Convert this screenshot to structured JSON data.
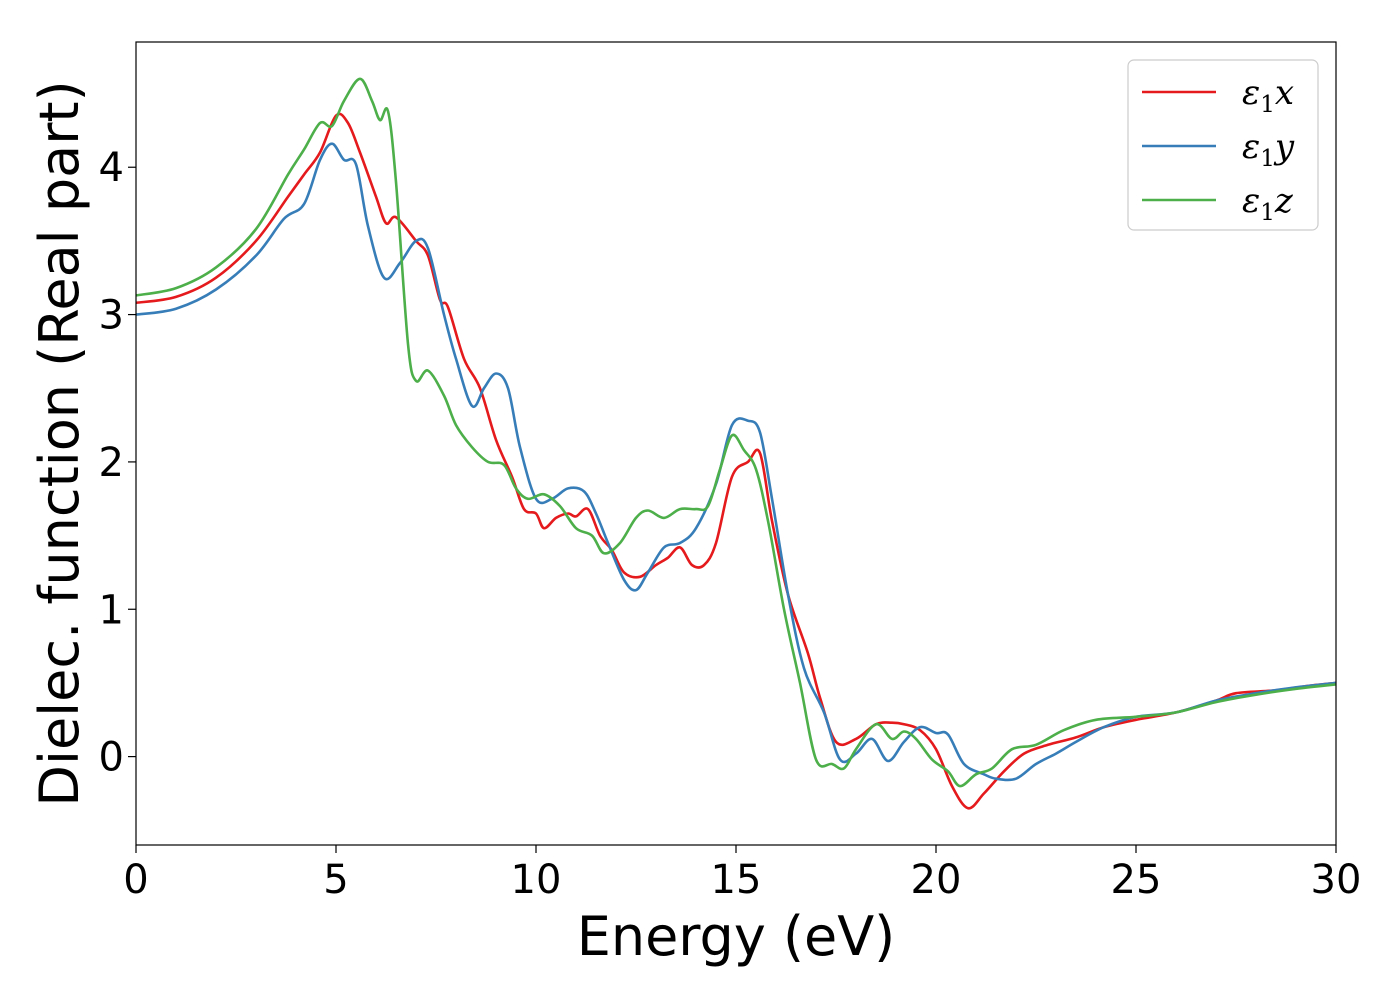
{
  "chart_data": {
    "type": "line",
    "title": "",
    "xlabel": "Energy (eV)",
    "ylabel": "Dielec. function (Real part)",
    "xlim": [
      0,
      30
    ],
    "ylim": [
      -0.6,
      4.85
    ],
    "xticks": [
      0,
      5,
      10,
      15,
      20,
      25,
      30
    ],
    "yticks": [
      0,
      1,
      2,
      3,
      4
    ],
    "grid": false,
    "legend_position": "top-right",
    "series": [
      {
        "name": "ε1x",
        "label_base": "ε",
        "label_sub": "1",
        "label_suffix": "x",
        "color": "#e41a1c",
        "points": [
          [
            0,
            3.08
          ],
          [
            1,
            3.12
          ],
          [
            2,
            3.25
          ],
          [
            3,
            3.5
          ],
          [
            3.8,
            3.8
          ],
          [
            4.2,
            3.95
          ],
          [
            4.6,
            4.1
          ],
          [
            5.0,
            4.35
          ],
          [
            5.3,
            4.3
          ],
          [
            5.6,
            4.1
          ],
          [
            6.0,
            3.8
          ],
          [
            6.25,
            3.62
          ],
          [
            6.5,
            3.66
          ],
          [
            7.0,
            3.5
          ],
          [
            7.3,
            3.4
          ],
          [
            7.6,
            3.1
          ],
          [
            7.8,
            3.05
          ],
          [
            8.2,
            2.7
          ],
          [
            8.6,
            2.5
          ],
          [
            9.0,
            2.15
          ],
          [
            9.4,
            1.9
          ],
          [
            9.7,
            1.68
          ],
          [
            10.0,
            1.65
          ],
          [
            10.2,
            1.55
          ],
          [
            10.5,
            1.62
          ],
          [
            10.8,
            1.65
          ],
          [
            11.0,
            1.63
          ],
          [
            11.3,
            1.68
          ],
          [
            11.6,
            1.5
          ],
          [
            11.9,
            1.4
          ],
          [
            12.2,
            1.25
          ],
          [
            12.6,
            1.22
          ],
          [
            13.0,
            1.3
          ],
          [
            13.3,
            1.35
          ],
          [
            13.6,
            1.42
          ],
          [
            13.9,
            1.3
          ],
          [
            14.2,
            1.3
          ],
          [
            14.5,
            1.45
          ],
          [
            14.9,
            1.9
          ],
          [
            15.3,
            2.0
          ],
          [
            15.6,
            2.06
          ],
          [
            15.9,
            1.6
          ],
          [
            16.3,
            1.1
          ],
          [
            16.8,
            0.7
          ],
          [
            17.1,
            0.4
          ],
          [
            17.5,
            0.1
          ],
          [
            18.0,
            0.12
          ],
          [
            18.5,
            0.22
          ],
          [
            18.9,
            0.23
          ],
          [
            19.2,
            0.22
          ],
          [
            19.6,
            0.18
          ],
          [
            20.0,
            0.05
          ],
          [
            20.4,
            -0.2
          ],
          [
            20.8,
            -0.35
          ],
          [
            21.2,
            -0.25
          ],
          [
            21.7,
            -0.1
          ],
          [
            22.2,
            0.02
          ],
          [
            22.8,
            0.08
          ],
          [
            23.5,
            0.13
          ],
          [
            24.2,
            0.2
          ],
          [
            25.0,
            0.25
          ],
          [
            26.0,
            0.3
          ],
          [
            27.0,
            0.38
          ],
          [
            27.5,
            0.43
          ],
          [
            28.5,
            0.45
          ],
          [
            29.3,
            0.48
          ],
          [
            30,
            0.5
          ]
        ]
      },
      {
        "name": "ε1y",
        "label_base": "ε",
        "label_sub": "1",
        "label_suffix": "y",
        "color": "#377eb8",
        "points": [
          [
            0,
            3.0
          ],
          [
            1,
            3.04
          ],
          [
            2,
            3.17
          ],
          [
            3,
            3.4
          ],
          [
            3.7,
            3.65
          ],
          [
            4.2,
            3.75
          ],
          [
            4.6,
            4.05
          ],
          [
            4.9,
            4.16
          ],
          [
            5.2,
            4.05
          ],
          [
            5.5,
            4.02
          ],
          [
            5.8,
            3.6
          ],
          [
            6.2,
            3.25
          ],
          [
            6.6,
            3.35
          ],
          [
            7.0,
            3.5
          ],
          [
            7.3,
            3.45
          ],
          [
            7.7,
            3.0
          ],
          [
            8.0,
            2.7
          ],
          [
            8.4,
            2.38
          ],
          [
            8.7,
            2.5
          ],
          [
            9.0,
            2.6
          ],
          [
            9.3,
            2.5
          ],
          [
            9.6,
            2.1
          ],
          [
            10.0,
            1.75
          ],
          [
            10.4,
            1.75
          ],
          [
            10.8,
            1.82
          ],
          [
            11.2,
            1.8
          ],
          [
            11.5,
            1.65
          ],
          [
            11.8,
            1.45
          ],
          [
            12.2,
            1.2
          ],
          [
            12.5,
            1.13
          ],
          [
            12.8,
            1.25
          ],
          [
            13.2,
            1.42
          ],
          [
            13.6,
            1.45
          ],
          [
            14.0,
            1.55
          ],
          [
            14.5,
            1.85
          ],
          [
            14.9,
            2.25
          ],
          [
            15.3,
            2.28
          ],
          [
            15.6,
            2.2
          ],
          [
            15.9,
            1.75
          ],
          [
            16.3,
            1.1
          ],
          [
            16.7,
            0.6
          ],
          [
            17.2,
            0.3
          ],
          [
            17.6,
            -0.02
          ],
          [
            18.0,
            0.02
          ],
          [
            18.4,
            0.12
          ],
          [
            18.8,
            -0.03
          ],
          [
            19.2,
            0.1
          ],
          [
            19.6,
            0.2
          ],
          [
            20.0,
            0.16
          ],
          [
            20.3,
            0.15
          ],
          [
            20.7,
            -0.05
          ],
          [
            21.2,
            -0.12
          ],
          [
            21.5,
            -0.15
          ],
          [
            22.0,
            -0.15
          ],
          [
            22.5,
            -0.05
          ],
          [
            23.0,
            0.02
          ],
          [
            23.5,
            0.1
          ],
          [
            24.2,
            0.2
          ],
          [
            25.0,
            0.27
          ],
          [
            26.0,
            0.3
          ],
          [
            27.0,
            0.38
          ],
          [
            28.0,
            0.43
          ],
          [
            29.0,
            0.47
          ],
          [
            30,
            0.5
          ]
        ]
      },
      {
        "name": "ε1z",
        "label_base": "ε",
        "label_sub": "1",
        "label_suffix": "z",
        "color": "#4daf4a",
        "points": [
          [
            0,
            3.13
          ],
          [
            1,
            3.18
          ],
          [
            2,
            3.32
          ],
          [
            3,
            3.58
          ],
          [
            3.8,
            3.95
          ],
          [
            4.2,
            4.12
          ],
          [
            4.6,
            4.3
          ],
          [
            4.9,
            4.28
          ],
          [
            5.2,
            4.45
          ],
          [
            5.6,
            4.6
          ],
          [
            5.9,
            4.45
          ],
          [
            6.1,
            4.32
          ],
          [
            6.3,
            4.38
          ],
          [
            6.5,
            3.9
          ],
          [
            6.8,
            2.8
          ],
          [
            7.0,
            2.55
          ],
          [
            7.3,
            2.62
          ],
          [
            7.7,
            2.45
          ],
          [
            8.0,
            2.25
          ],
          [
            8.4,
            2.1
          ],
          [
            8.8,
            2.0
          ],
          [
            9.2,
            1.98
          ],
          [
            9.5,
            1.82
          ],
          [
            9.8,
            1.75
          ],
          [
            10.2,
            1.78
          ],
          [
            10.6,
            1.7
          ],
          [
            11.0,
            1.55
          ],
          [
            11.4,
            1.5
          ],
          [
            11.7,
            1.38
          ],
          [
            12.1,
            1.45
          ],
          [
            12.5,
            1.62
          ],
          [
            12.8,
            1.67
          ],
          [
            13.2,
            1.62
          ],
          [
            13.6,
            1.68
          ],
          [
            14.0,
            1.68
          ],
          [
            14.3,
            1.7
          ],
          [
            14.6,
            1.95
          ],
          [
            14.9,
            2.18
          ],
          [
            15.2,
            2.08
          ],
          [
            15.5,
            1.95
          ],
          [
            15.8,
            1.6
          ],
          [
            16.2,
            1.0
          ],
          [
            16.6,
            0.5
          ],
          [
            17.0,
            -0.02
          ],
          [
            17.4,
            -0.05
          ],
          [
            17.7,
            -0.08
          ],
          [
            18.0,
            0.05
          ],
          [
            18.5,
            0.22
          ],
          [
            18.9,
            0.12
          ],
          [
            19.2,
            0.17
          ],
          [
            19.5,
            0.12
          ],
          [
            19.9,
            -0.02
          ],
          [
            20.3,
            -0.1
          ],
          [
            20.6,
            -0.2
          ],
          [
            21.0,
            -0.12
          ],
          [
            21.4,
            -0.08
          ],
          [
            21.9,
            0.05
          ],
          [
            22.5,
            0.08
          ],
          [
            23.2,
            0.18
          ],
          [
            24.0,
            0.25
          ],
          [
            25.0,
            0.27
          ],
          [
            26.0,
            0.3
          ],
          [
            27.0,
            0.37
          ],
          [
            28.0,
            0.42
          ],
          [
            29.0,
            0.46
          ],
          [
            30,
            0.49
          ]
        ]
      }
    ]
  }
}
